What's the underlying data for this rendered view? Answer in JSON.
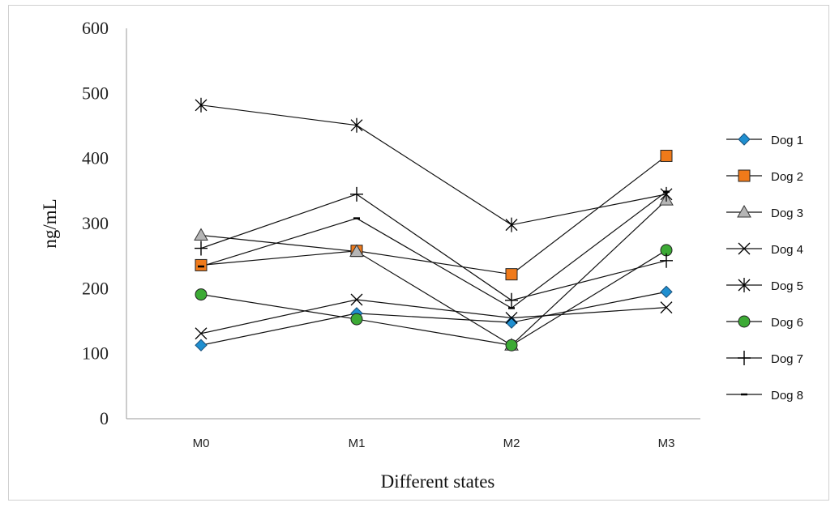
{
  "chart_data": {
    "type": "line",
    "title": "",
    "xlabel": "Different states",
    "ylabel": "ng/mL",
    "categories": [
      "M0",
      "M1",
      "M2",
      "M3"
    ],
    "ylim": [
      0,
      600
    ],
    "yticks": [
      0,
      100,
      200,
      300,
      400,
      500,
      600
    ],
    "grid": false,
    "legend_position": "right",
    "series": [
      {
        "name": "Dog 1",
        "marker": "diamond",
        "color": "#1f8fd0",
        "values": [
          113,
          162,
          148,
          195
        ]
      },
      {
        "name": "Dog 2",
        "marker": "square",
        "color": "#f07a1a",
        "values": [
          236,
          258,
          222,
          404
        ]
      },
      {
        "name": "Dog 3",
        "marker": "triangle",
        "color": "#b5b5b5",
        "values": [
          282,
          257,
          113,
          336
        ]
      },
      {
        "name": "Dog 4",
        "marker": "x",
        "color": "#000000",
        "values": [
          131,
          183,
          155,
          171
        ]
      },
      {
        "name": "Dog 5",
        "marker": "star",
        "color": "#000000",
        "values": [
          482,
          451,
          298,
          345
        ]
      },
      {
        "name": "Dog 6",
        "marker": "circle",
        "color": "#3caa35",
        "values": [
          191,
          153,
          113,
          259
        ]
      },
      {
        "name": "Dog 7",
        "marker": "plus",
        "color": "#000000",
        "values": [
          262,
          345,
          182,
          243
        ]
      },
      {
        "name": "Dog 8",
        "marker": "dash",
        "color": "#000000",
        "values": [
          234,
          308,
          170,
          349
        ]
      }
    ]
  }
}
